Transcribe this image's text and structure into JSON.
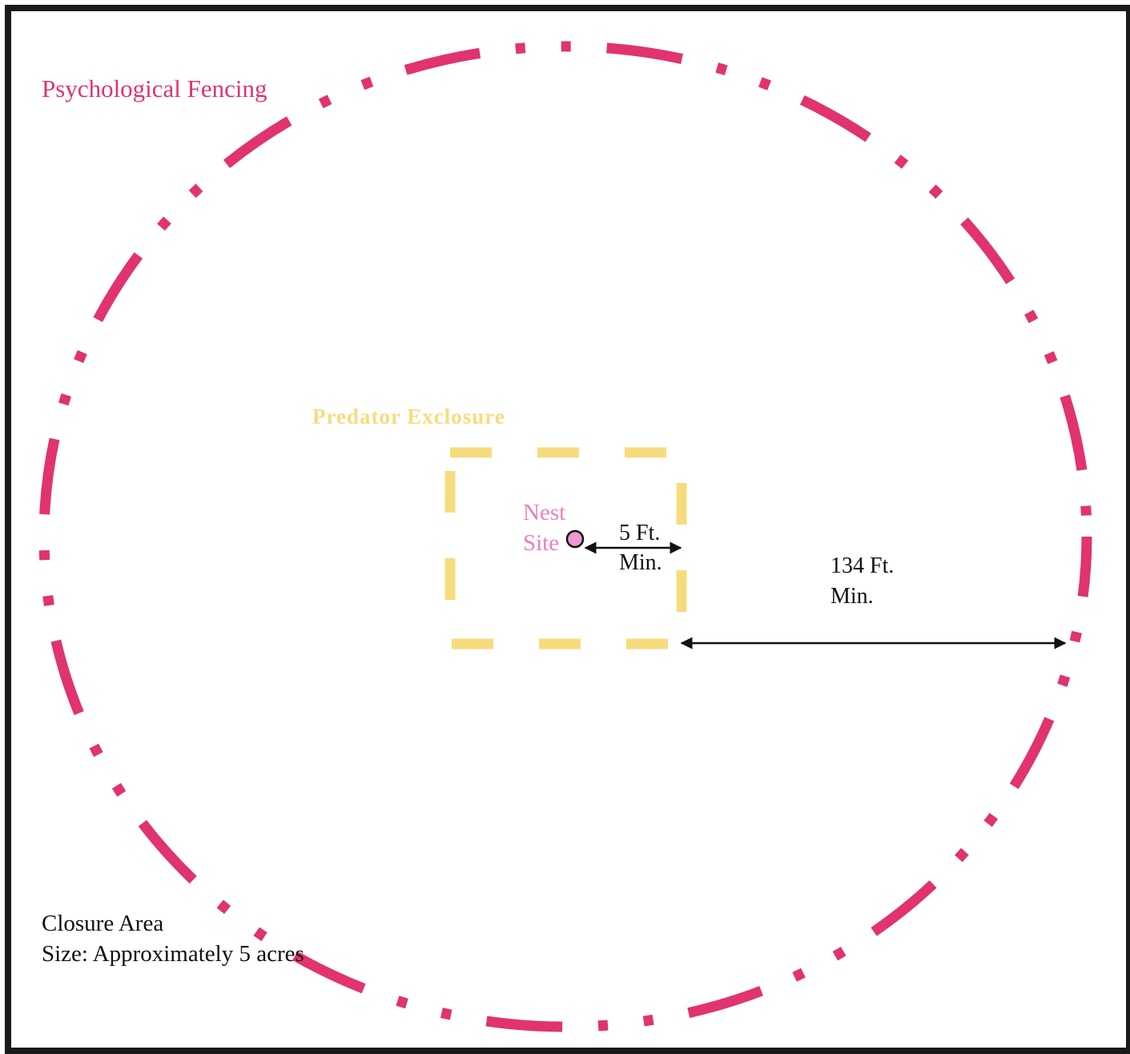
{
  "fence": {
    "label": "Psychological Fencing",
    "color": "#e0336f"
  },
  "exclosure": {
    "label": "Predator Exclosure",
    "color": "#f6dc7e"
  },
  "nest": {
    "line1": "Nest",
    "line2": "Site",
    "color": "#e97fbe",
    "marker_fill": "#ee9ad0"
  },
  "dimensions": {
    "nest_to_exclosure": {
      "line1": "5 Ft.",
      "line2": "Min."
    },
    "exclosure_to_fence": {
      "line1": "134 Ft.",
      "line2": "Min."
    }
  },
  "closure": {
    "line1": "Closure Area",
    "line2": "Size: Approximately 5 acres"
  }
}
